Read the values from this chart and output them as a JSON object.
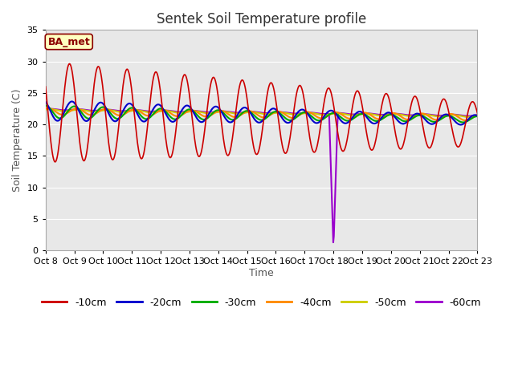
{
  "title": "Sentek Soil Temperature profile",
  "xlabel": "Time",
  "ylabel": "Soil Temperature (C)",
  "ylim": [
    0,
    35
  ],
  "yticks": [
    0,
    5,
    10,
    15,
    20,
    25,
    30,
    35
  ],
  "x_labels": [
    "Oct 8",
    "Oct 9",
    "Oct 10",
    "Oct 11",
    "Oct 12",
    "Oct 13",
    "Oct 14",
    "Oct 15",
    "Oct 16",
    "Oct 17",
    "Oct 18",
    "Oct 19",
    "Oct 20",
    "Oct 21",
    "Oct 22",
    "Oct 23"
  ],
  "annotation_text": "BA_met",
  "line_colors": {
    "-10cm": "#cc0000",
    "-20cm": "#0000cc",
    "-30cm": "#00aa00",
    "-40cm": "#ff8800",
    "-50cm": "#cccc00",
    "-60cm": "#9900cc"
  },
  "fig_bg_color": "#ffffff",
  "plot_bg_color": "#e8e8e8",
  "grid_color": "#ffffff",
  "title_fontsize": 12,
  "axis_label_fontsize": 9,
  "tick_fontsize": 8
}
